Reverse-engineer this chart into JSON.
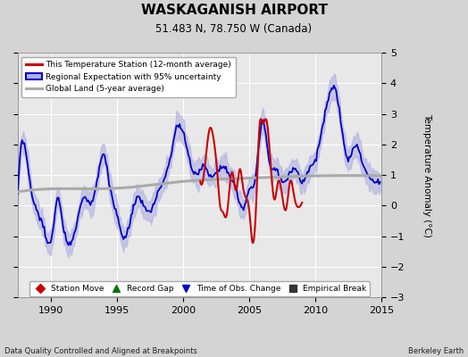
{
  "title": "WASKAGANISH AIRPORT",
  "subtitle": "51.483 N, 78.750 W (Canada)",
  "ylabel": "Temperature Anomaly (°C)",
  "footer_left": "Data Quality Controlled and Aligned at Breakpoints",
  "footer_right": "Berkeley Earth",
  "xlim": [
    1987.5,
    2015
  ],
  "ylim": [
    -3,
    5
  ],
  "yticks": [
    -3,
    -2,
    -1,
    0,
    1,
    2,
    3,
    4,
    5
  ],
  "xticks": [
    1990,
    1995,
    2000,
    2005,
    2010,
    2015
  ],
  "bg_color": "#d4d4d4",
  "plot_bg_color": "#e8e8e8",
  "grid_color": "#ffffff",
  "red_line_color": "#cc0000",
  "blue_line_color": "#0000cc",
  "blue_fill_color": "#b0b0e0",
  "gray_line_color": "#aaaaaa",
  "legend_entries": [
    "This Temperature Station (12-month average)",
    "Regional Expectation with 95% uncertainty",
    "Global Land (5-year average)"
  ],
  "marker_legend": [
    {
      "marker": "D",
      "color": "#cc0000",
      "label": "Station Move"
    },
    {
      "marker": "^",
      "color": "#007700",
      "label": "Record Gap"
    },
    {
      "marker": "v",
      "color": "#0000cc",
      "label": "Time of Obs. Change"
    },
    {
      "marker": "s",
      "color": "#333333",
      "label": "Empirical Break"
    }
  ]
}
